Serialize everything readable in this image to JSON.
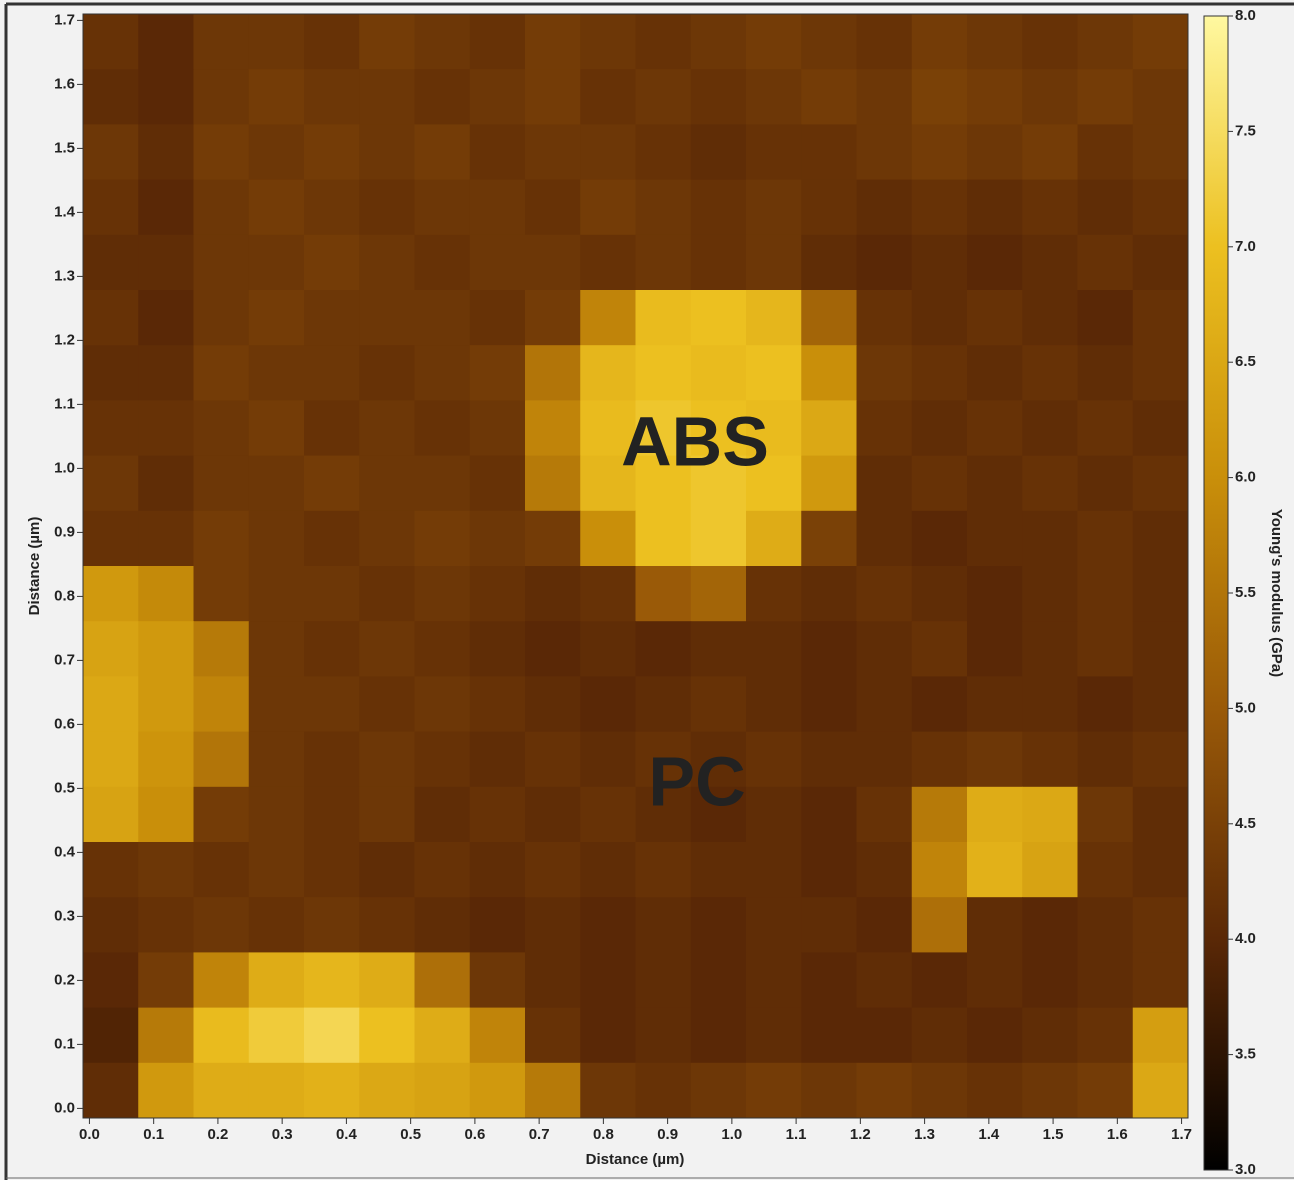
{
  "chart_data": {
    "type": "heatmap",
    "xlabel": "Distance (µm)",
    "ylabel": "Distance (µm)",
    "colorbar_label": "Young's modulus (GPa)",
    "annotations": [
      {
        "text": "ABS",
        "color": "#222222"
      },
      {
        "text": "PC",
        "color": "#ffffff"
      }
    ],
    "xlim": [
      -0.01,
      1.71
    ],
    "ylim": [
      -0.015,
      1.71
    ],
    "xticks": [
      {
        "value": 0,
        "label": "0.0"
      },
      0.1,
      0.2,
      0.3,
      0.4,
      0.5,
      0.6,
      0.7,
      0.8,
      0.9,
      {
        "value": 1,
        "label": "1.0"
      },
      1.1,
      1.2,
      1.3,
      1.4,
      1.5,
      1.6,
      1.7
    ],
    "yticks": [
      {
        "value": 0,
        "label": "0.0"
      },
      0.1,
      0.2,
      0.3,
      0.4,
      0.5,
      0.6,
      0.7,
      0.8,
      0.9,
      {
        "value": 1,
        "label": "1.0"
      },
      1.1,
      1.2,
      1.3,
      1.4,
      1.5,
      1.6,
      1.7
    ],
    "zlim": [
      3,
      8
    ],
    "zticks": [
      {
        "value": 3,
        "label": "3.0"
      },
      3.5,
      {
        "value": 4,
        "label": "4.0"
      },
      4.5,
      {
        "value": 5,
        "label": "5.0"
      },
      5.5,
      {
        "value": 6,
        "label": "6.0"
      },
      6.5,
      {
        "value": 7,
        "label": "7.0"
      },
      7.5,
      {
        "value": 8,
        "label": "8.0"
      }
    ],
    "colormap": [
      "#000000",
      "#5a2806",
      "#9a5a08",
      "#c98f0a",
      "#ecc020",
      "#fff8a0"
    ],
    "z": [
      [
        4.2,
        4.0,
        4.3,
        4.3,
        4.2,
        4.4,
        4.3,
        4.2,
        4.4,
        4.3,
        4.2,
        4.3,
        4.4,
        4.3,
        4.2,
        4.4,
        4.3,
        4.2,
        4.3,
        4.4
      ],
      [
        4.1,
        4.0,
        4.3,
        4.4,
        4.3,
        4.3,
        4.2,
        4.3,
        4.4,
        4.2,
        4.3,
        4.2,
        4.3,
        4.4,
        4.3,
        4.5,
        4.4,
        4.3,
        4.4,
        4.3
      ],
      [
        4.3,
        4.1,
        4.4,
        4.3,
        4.4,
        4.3,
        4.4,
        4.2,
        4.3,
        4.3,
        4.2,
        4.1,
        4.2,
        4.2,
        4.3,
        4.4,
        4.3,
        4.4,
        4.2,
        4.3
      ],
      [
        4.2,
        4.0,
        4.3,
        4.4,
        4.3,
        4.2,
        4.3,
        4.3,
        4.2,
        4.4,
        4.3,
        4.2,
        4.3,
        4.2,
        4.1,
        4.2,
        4.1,
        4.2,
        4.1,
        4.2
      ],
      [
        4.1,
        4.1,
        4.3,
        4.3,
        4.4,
        4.3,
        4.2,
        4.3,
        4.3,
        4.2,
        4.3,
        4.2,
        4.3,
        4.1,
        4.0,
        4.1,
        4.0,
        4.1,
        4.2,
        4.1
      ],
      [
        4.2,
        4.0,
        4.3,
        4.4,
        4.3,
        4.3,
        4.3,
        4.2,
        4.4,
        5.8,
        6.9,
        7.0,
        6.8,
        5.2,
        4.2,
        4.1,
        4.2,
        4.1,
        4.0,
        4.2
      ],
      [
        4.1,
        4.1,
        4.4,
        4.3,
        4.3,
        4.2,
        4.3,
        4.4,
        5.5,
        6.8,
        7.0,
        6.9,
        7.0,
        6.0,
        4.3,
        4.2,
        4.1,
        4.2,
        4.1,
        4.2
      ],
      [
        4.2,
        4.2,
        4.3,
        4.4,
        4.2,
        4.3,
        4.2,
        4.3,
        5.8,
        6.9,
        7.1,
        7.0,
        6.9,
        6.5,
        4.2,
        4.1,
        4.2,
        4.1,
        4.2,
        4.1
      ],
      [
        4.3,
        4.1,
        4.3,
        4.3,
        4.4,
        4.3,
        4.3,
        4.2,
        5.6,
        6.8,
        7.0,
        7.1,
        7.0,
        6.2,
        4.1,
        4.2,
        4.1,
        4.2,
        4.1,
        4.2
      ],
      [
        4.2,
        4.2,
        4.4,
        4.3,
        4.2,
        4.3,
        4.4,
        4.3,
        4.4,
        6.0,
        7.0,
        7.1,
        6.6,
        4.5,
        4.1,
        4.0,
        4.1,
        4.1,
        4.2,
        4.1
      ],
      [
        6.2,
        5.9,
        4.4,
        4.3,
        4.3,
        4.2,
        4.3,
        4.2,
        4.1,
        4.2,
        5.0,
        5.2,
        4.2,
        4.1,
        4.2,
        4.1,
        4.0,
        4.1,
        4.2,
        4.1
      ],
      [
        6.4,
        6.2,
        5.6,
        4.3,
        4.2,
        4.3,
        4.2,
        4.1,
        4.0,
        4.1,
        4.0,
        4.1,
        4.1,
        4.0,
        4.1,
        4.2,
        4.0,
        4.1,
        4.2,
        4.1
      ],
      [
        6.5,
        6.2,
        5.8,
        4.3,
        4.3,
        4.2,
        4.3,
        4.2,
        4.1,
        4.0,
        4.1,
        4.2,
        4.1,
        4.0,
        4.1,
        4.0,
        4.1,
        4.1,
        4.0,
        4.1
      ],
      [
        6.5,
        6.1,
        5.5,
        4.3,
        4.2,
        4.3,
        4.2,
        4.1,
        4.2,
        4.1,
        4.2,
        4.1,
        4.2,
        4.1,
        4.1,
        4.2,
        4.3,
        4.2,
        4.1,
        4.2
      ],
      [
        6.4,
        6.0,
        4.4,
        4.3,
        4.2,
        4.3,
        4.1,
        4.2,
        4.1,
        4.2,
        4.1,
        4.0,
        4.1,
        4.0,
        4.2,
        5.6,
        6.6,
        6.5,
        4.3,
        4.1
      ],
      [
        4.2,
        4.3,
        4.2,
        4.3,
        4.2,
        4.1,
        4.2,
        4.1,
        4.2,
        4.1,
        4.2,
        4.1,
        4.1,
        4.0,
        4.1,
        5.8,
        6.7,
        6.4,
        4.2,
        4.1
      ],
      [
        4.1,
        4.2,
        4.3,
        4.2,
        4.3,
        4.2,
        4.1,
        4.0,
        4.1,
        4.0,
        4.1,
        4.0,
        4.1,
        4.1,
        4.0,
        5.4,
        4.1,
        4.0,
        4.1,
        4.2
      ],
      [
        4.0,
        4.4,
        5.8,
        6.6,
        6.8,
        6.6,
        5.4,
        4.3,
        4.1,
        4.0,
        4.1,
        4.0,
        4.1,
        4.0,
        4.1,
        4.0,
        4.1,
        4.0,
        4.1,
        4.2
      ],
      [
        3.9,
        5.6,
        6.9,
        7.2,
        7.4,
        7.0,
        6.6,
        5.8,
        4.2,
        4.0,
        4.1,
        4.0,
        4.1,
        4.0,
        4.0,
        4.1,
        4.0,
        4.1,
        4.2,
        6.3
      ],
      [
        4.1,
        6.2,
        6.6,
        6.6,
        6.7,
        6.5,
        6.4,
        6.2,
        5.6,
        4.3,
        4.2,
        4.3,
        4.4,
        4.3,
        4.4,
        4.3,
        4.2,
        4.3,
        4.4,
        6.5
      ]
    ]
  }
}
